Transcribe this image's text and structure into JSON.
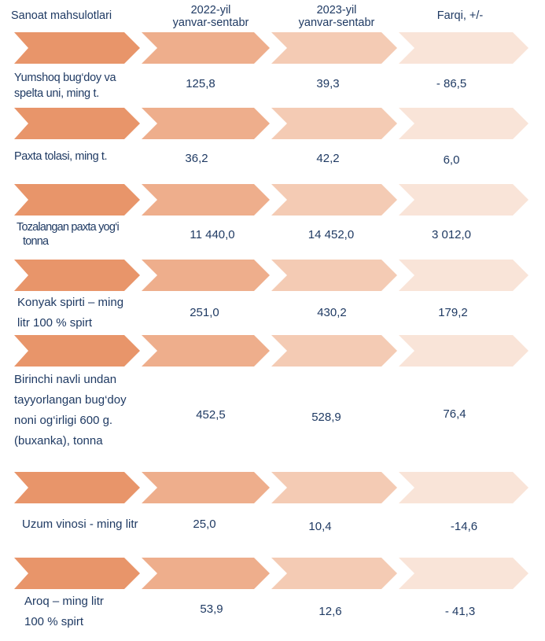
{
  "header": {
    "product": "Sanoat mahsulotlari",
    "col2022": [
      "2022-yil",
      "yanvar-sentabr"
    ],
    "col2023": [
      "2023-yil",
      "yanvar-sentabr"
    ],
    "diff": "Farqi,  +/-"
  },
  "colors": {
    "arrow1": "#e8956a",
    "arrow2": "#eeae8c",
    "arrow3": "#f4cbb4",
    "arrow4": "#f9e4d8",
    "text": "#1f3a63"
  },
  "rows": [
    {
      "label": [
        "Yumshoq bug‘doy va",
        "spelta uni, ming t."
      ],
      "v2022": "125,8",
      "v2023": "39,3",
      "diff": "- 86,5"
    },
    {
      "label": [
        "Paxta tolasi, ming t."
      ],
      "v2022": "36,2",
      "v2023": "42,2",
      "diff": "6,0"
    },
    {
      "label": [
        "Tozalangan paxta yog‘i",
        "tonna"
      ],
      "v2022": "11 440,0",
      "v2023": "14 452,0",
      "diff": "3 012,0"
    },
    {
      "label": [
        "Konyak spirti – ming",
        "litr 100 % spirt"
      ],
      "v2022": "251,0",
      "v2023": "430,2",
      "diff": "179,2"
    },
    {
      "label": [
        "Birinchi navli undan",
        "tayyorlangan bug‘doy",
        "noni og‘irligi 600 g.",
        "(buxanka), tonna"
      ],
      "v2022": "452,5",
      "v2023": "528,9",
      "diff": "76,4"
    },
    {
      "label": [
        "Uzum vinosi - ming litr"
      ],
      "v2022": "25,0",
      "v2023": "10,4",
      "diff": "-14,6"
    },
    {
      "label": [
        "Aroq – ming litr",
        "100 % spirt"
      ],
      "v2022": "53,9",
      "v2023": "12,6",
      "diff": "- 41,3"
    }
  ]
}
